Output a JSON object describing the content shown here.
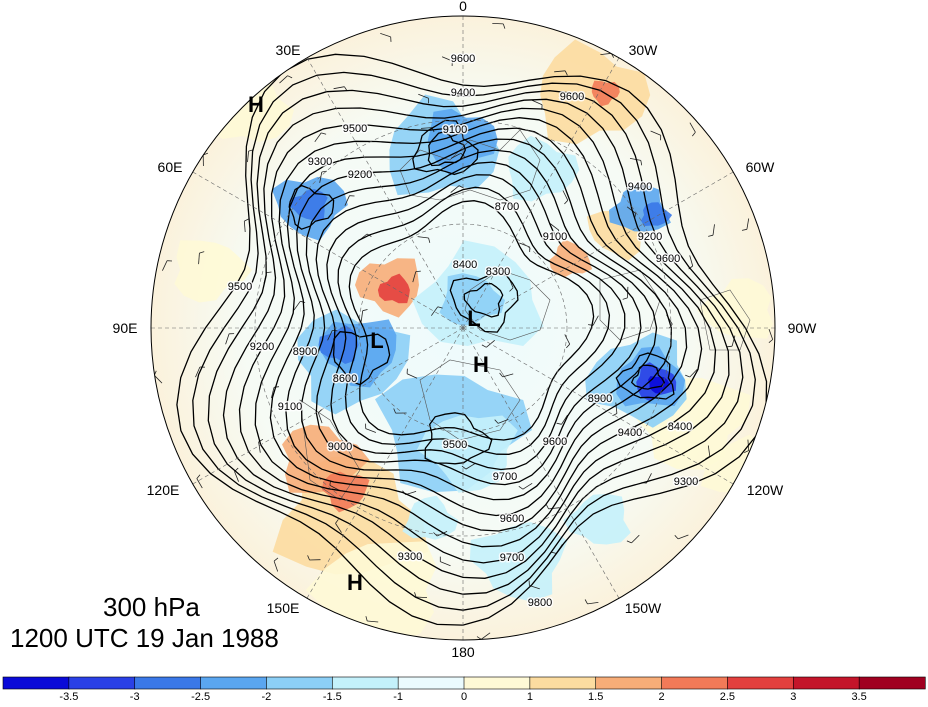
{
  "map": {
    "level_label": "300 hPa",
    "time_label": "1200 UTC 19 Jan 1988",
    "longitude_labels": [
      "0",
      "30W",
      "60W",
      "90W",
      "120W",
      "150W",
      "180",
      "150E",
      "120E",
      "90E",
      "60E",
      "30E"
    ],
    "pressure_centers": [
      {
        "type": "H",
        "region": "north polar",
        "lon": "30E"
      },
      {
        "type": "L",
        "region": "near pole",
        "lon": "90W"
      },
      {
        "type": "L",
        "region": "eastern Siberia",
        "lon": "90E"
      },
      {
        "type": "H",
        "region": "Arctic",
        "lon": "180"
      },
      {
        "type": "H",
        "region": "north Pacific",
        "lon": "150E"
      }
    ],
    "contour_labels": [
      "9600",
      "9400",
      "9500",
      "9100",
      "9300",
      "9200",
      "8700",
      "9100",
      "9600",
      "9400",
      "9600",
      "9500",
      "8400",
      "8300",
      "8600",
      "8900",
      "9200",
      "9100",
      "9000",
      "9300",
      "9500",
      "9700",
      "9600",
      "9400",
      "8900",
      "8400",
      "9200",
      "9300",
      "9600",
      "9700",
      "9800"
    ],
    "colorbar": {
      "tick_labels": [
        "-3.5",
        "-3",
        "-2.5",
        "-2",
        "-1.5",
        "-1",
        "0",
        "1",
        "1.5",
        "2",
        "2.5",
        "3",
        "3.5"
      ],
      "colors": [
        "#0a0ad8",
        "#2a40e6",
        "#3a78e8",
        "#5aa6f0",
        "#8ccff6",
        "#c4f1fb",
        "#ebfbfe",
        "#fef9d6",
        "#fcdca0",
        "#f7ad78",
        "#f27a58",
        "#e3403e",
        "#c4152a",
        "#a00020"
      ]
    }
  }
}
